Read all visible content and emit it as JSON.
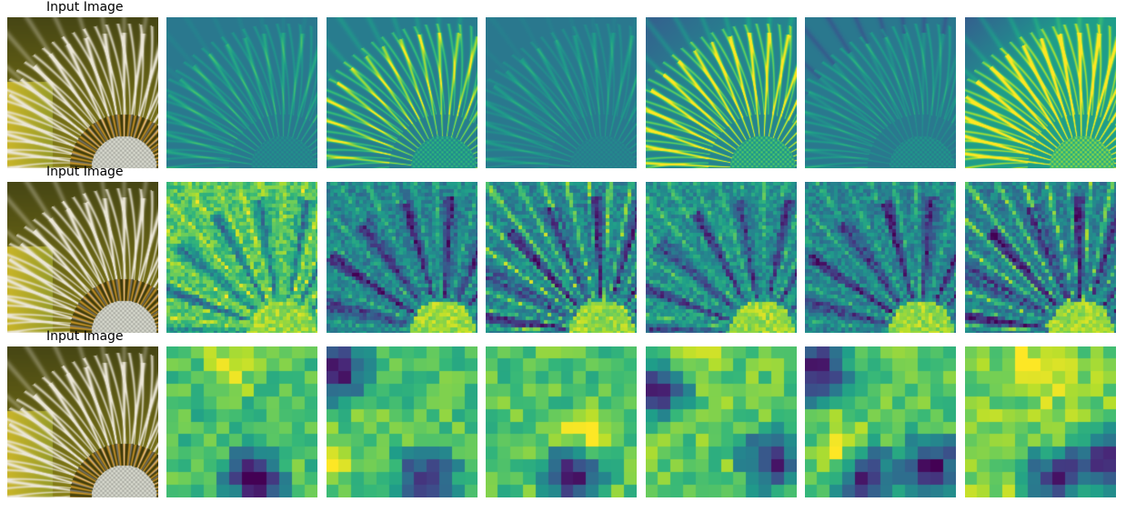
{
  "figure": {
    "rows": [
      {
        "title": "Input Image",
        "resolution": "fine"
      },
      {
        "title": "Input Image",
        "resolution": "medium"
      },
      {
        "title": "Input Image",
        "resolution": "coarse"
      }
    ],
    "feature_maps_per_row": 6,
    "colormap": "viridis",
    "input_image_subject": "dandelion seed head close-up",
    "colors": {
      "background": "#ffffff",
      "viridis_low": "#440154",
      "viridis_mid": "#21918c",
      "viridis_high": "#fde725"
    }
  }
}
